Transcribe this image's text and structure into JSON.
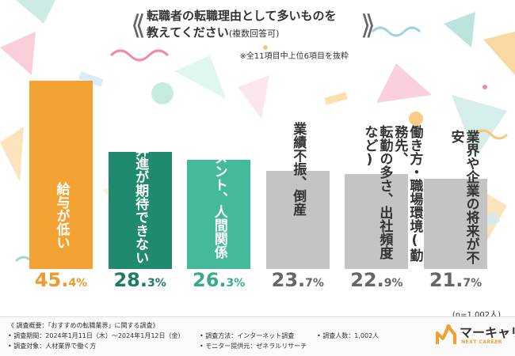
{
  "title": {
    "line1": "転職者の転職理由として多いものを",
    "line2_main": "教えてください",
    "line2_sub": "(複数回答可)"
  },
  "note": "※全11項目中上位6項目を抜粋",
  "sample_note": "(n=1,002人)",
  "colors": {
    "orange": "#f3a234",
    "dark_green": "#1f8a70",
    "teal": "#44b99b",
    "gray": "#c4c4c4",
    "orange_text": "#ef9a2a",
    "dark_green_text": "#1d7d64",
    "teal_text": "#3aaa8c",
    "gray_text": "#666666"
  },
  "chart_data": {
    "type": "bar",
    "title": "転職者の転職理由として多いものを教えてください(複数回答可)",
    "categories": [
      "給与が低い",
      "昇給や昇進が期待できない",
      "ハラスメント、人間関係",
      "業績不振、倒産",
      "働き方・職場環境(勤務先、転勤の多さ、出社頻度など)",
      "業界や企業の将来が不安"
    ],
    "values": [
      45.4,
      28.3,
      26.3,
      23.7,
      22.9,
      21.7
    ],
    "unit": "%",
    "ylim": [
      0,
      45.4
    ],
    "grid": false,
    "legend": "none",
    "bar_colors": [
      "orange",
      "dark_green",
      "teal",
      "gray",
      "gray",
      "gray"
    ],
    "label_colors": [
      "#ffffff",
      "#ffffff",
      "#ffffff",
      "#333333",
      "#333333",
      "#333333"
    ],
    "label_lines": [
      [
        "給与が低い"
      ],
      [
        "昇給や昇進が期待できない"
      ],
      [
        "ハラスメント、人間関係"
      ],
      [
        "業績不振、倒産"
      ],
      [
        "働き方・職場環境(勤務先、",
        "転勤の多さ、出社頻度など)"
      ],
      [
        "業界や企業の将来が不安"
      ]
    ],
    "pct_int": [
      "45.",
      "28.",
      "26.",
      "23.",
      "22.",
      "21."
    ],
    "pct_dec": [
      "4%",
      "3%",
      "3%",
      "7%",
      "9%",
      "7%"
    ],
    "pct_colors": [
      "orange_text",
      "dark_green_text",
      "teal_text",
      "gray_text",
      "gray_text",
      "gray_text"
    ]
  },
  "footer": {
    "overview": "《 調査概要：「おすすめの転職業界」に関する調査》",
    "period": "• 調査期間：2024年1月11日（木）～2024年1月12日（金）",
    "target": "• 調査対象：人材業界で働く方",
    "method": "• 調査方法：インターネット調査",
    "provider": "• モニター提供元：ゼネラルリサーチ",
    "count": "• 調査人数：1,002人"
  },
  "logo": {
    "main": "マーキャリ",
    "sub": "NEXT CAREER"
  }
}
